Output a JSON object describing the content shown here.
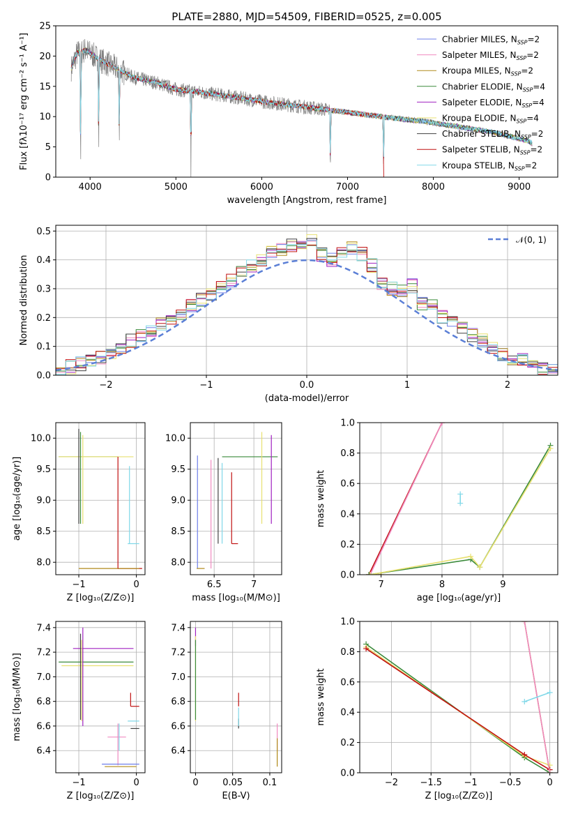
{
  "page": {
    "title": "PLATE=2880, MJD=54509, FIBERID=0525, z=0.005"
  },
  "models": [
    {
      "name": "Chabrier MILES, N",
      "sub": "SSP",
      "suffix": "=2",
      "color": "#6f7fe8"
    },
    {
      "name": "Salpeter MILES, N",
      "sub": "SSP",
      "suffix": "=2",
      "color": "#f08ac0"
    },
    {
      "name": "Kroupa MILES, N",
      "sub": "SSP",
      "suffix": "=2",
      "color": "#b08a1a"
    },
    {
      "name": "Chabrier ELODIE, N",
      "sub": "SSP",
      "suffix": "=4",
      "color": "#3a8a3a"
    },
    {
      "name": "Salpeter ELODIE, N",
      "sub": "SSP",
      "suffix": "=4",
      "color": "#a020c0"
    },
    {
      "name": "Kroupa ELODIE, N",
      "sub": "SSP",
      "suffix": "=4",
      "color": "#e8e070"
    },
    {
      "name": "Chabrier STELIB, N",
      "sub": "SSP",
      "suffix": "=2",
      "color": "#404040"
    },
    {
      "name": "Salpeter STELIB, N",
      "sub": "SSP",
      "suffix": "=2",
      "color": "#c01010"
    },
    {
      "name": "Kroupa STELIB, N",
      "sub": "SSP",
      "suffix": "=2",
      "color": "#80d8e8"
    }
  ],
  "chart_data": [
    {
      "id": "spectrum",
      "type": "line",
      "xlabel": "wavelength [Angstrom, rest frame]",
      "ylabel": "Flux [fλ10⁻¹⁷ erg cm⁻² s⁻¹ A⁻¹]",
      "xlim": [
        3600,
        9450
      ],
      "ylim": [
        0,
        25
      ],
      "xticks": [
        4000,
        5000,
        6000,
        7000,
        8000,
        9000
      ],
      "yticks": [
        0,
        5,
        10,
        15,
        20,
        25
      ],
      "observed_color": "#808080",
      "continuum_x": [
        3780,
        3850,
        3950,
        4100,
        4300,
        4500,
        4800,
        5000,
        5300,
        5600,
        6000,
        6500,
        7000,
        7500,
        7900,
        8300,
        8700,
        9100,
        9150
      ],
      "continuum_y": [
        18,
        20.5,
        21,
        19.5,
        18,
        16.5,
        15.5,
        14.5,
        14,
        13.4,
        12.5,
        11.6,
        10.7,
        9.8,
        9.2,
        8.3,
        7.4,
        6,
        5.6
      ],
      "absorption": [
        [
          3890,
          0.5
        ],
        [
          4100,
          3.5
        ],
        [
          4340,
          4.5
        ],
        [
          5175,
          0.3
        ],
        [
          6800,
          0.3
        ],
        [
          7420,
          0.3
        ]
      ]
    },
    {
      "id": "residuals",
      "type": "area",
      "xlabel": "(data-model)/error",
      "ylabel": "Normed distribution",
      "xlim": [
        -2.5,
        2.5
      ],
      "ylim": [
        0,
        0.52
      ],
      "xticks": [
        -2,
        -1,
        0,
        1,
        2
      ],
      "yticks": [
        0.0,
        0.1,
        0.2,
        0.3,
        0.4,
        0.5
      ],
      "reference_label": "𝒩(0, 1)",
      "reference_color": "#5b7fd6",
      "bin_edges_start": -2.5,
      "bin_width": 0.1,
      "histogram": [
        0.02,
        0.03,
        0.04,
        0.05,
        0.06,
        0.07,
        0.1,
        0.12,
        0.14,
        0.15,
        0.18,
        0.2,
        0.21,
        0.24,
        0.26,
        0.28,
        0.31,
        0.33,
        0.36,
        0.38,
        0.4,
        0.43,
        0.44,
        0.45,
        0.46,
        0.47,
        0.42,
        0.4,
        0.43,
        0.44,
        0.42,
        0.38,
        0.32,
        0.3,
        0.29,
        0.31,
        0.25,
        0.25,
        0.2,
        0.19,
        0.17,
        0.14,
        0.12,
        0.1,
        0.07,
        0.05,
        0.05,
        0.03,
        0.02,
        0.02
      ]
    },
    {
      "id": "z_vs_age",
      "type": "scatter",
      "xlabel": "Z [log₁₀(Z/Z⊙)]",
      "ylabel": "age  [log₁₀(age/yr)]",
      "xlim": [
        -1.4,
        0.15
      ],
      "ylim": [
        7.8,
        10.25
      ],
      "xticks": [
        -1,
        0
      ],
      "yticks": [
        8.0,
        8.5,
        9.0,
        9.5,
        10.0
      ],
      "segments": [
        {
          "m": 3,
          "h": [
            -1.35,
            -0.32,
            9.7
          ]
        },
        {
          "m": 5,
          "h": [
            -1.35,
            -0.05,
            9.7
          ]
        },
        {
          "m": 3,
          "v": [
            -0.97,
            8.62,
            10.1
          ]
        },
        {
          "m": 5,
          "v": [
            -0.93,
            8.62,
            10.05
          ]
        },
        {
          "m": 6,
          "v": [
            -1.0,
            8.62,
            10.15
          ]
        },
        {
          "m": 7,
          "h": [
            -0.32,
            0.1,
            7.9
          ]
        },
        {
          "m": 2,
          "h": [
            -1.0,
            0.05,
            7.9
          ]
        },
        {
          "m": 7,
          "v": [
            -0.32,
            7.9,
            9.7
          ]
        },
        {
          "m": 8,
          "v": [
            -0.12,
            8.3,
            9.55
          ]
        },
        {
          "m": 8,
          "h": [
            -0.15,
            0.05,
            8.3
          ]
        }
      ]
    },
    {
      "id": "mass_vs_age",
      "type": "scatter",
      "xlabel": "mass [log₁₀(M/M⊙)]",
      "ylabel": "",
      "xlim": [
        6.2,
        7.35
      ],
      "ylim": [
        7.8,
        10.25
      ],
      "xticks": [
        6.5,
        7.0
      ],
      "yticks": [
        8.0,
        8.5,
        9.0,
        9.5,
        10.0
      ],
      "segments": [
        {
          "m": 0,
          "v": [
            6.29,
            7.9,
            9.72
          ]
        },
        {
          "m": 1,
          "v": [
            6.46,
            7.9,
            9.65
          ]
        },
        {
          "m": 6,
          "v": [
            6.55,
            8.3,
            9.68
          ]
        },
        {
          "m": 8,
          "v": [
            6.6,
            8.3,
            9.6
          ]
        },
        {
          "m": 7,
          "v": [
            6.72,
            8.3,
            9.45
          ]
        },
        {
          "m": 7,
          "h": [
            6.72,
            6.8,
            8.3
          ]
        },
        {
          "m": 3,
          "h": [
            6.6,
            7.3,
            9.7
          ]
        },
        {
          "m": 5,
          "v": [
            7.1,
            8.62,
            10.1
          ]
        },
        {
          "m": 4,
          "v": [
            7.22,
            8.62,
            10.05
          ]
        },
        {
          "m": 2,
          "h": [
            6.28,
            6.38,
            7.9
          ]
        }
      ]
    },
    {
      "id": "age_vs_weight",
      "type": "line",
      "xlabel": "age  [log₁₀(age/yr)]",
      "ylabel": "mass weight",
      "xlim": [
        6.65,
        9.9
      ],
      "ylim": [
        0,
        1.0
      ],
      "xticks": [
        7,
        8,
        9
      ],
      "yticks": [
        0.0,
        0.2,
        0.4,
        0.6,
        0.8,
        1.0
      ],
      "lines": [
        {
          "m": 2,
          "x": [
            6.8,
            7.0
          ],
          "y": [
            0.0,
            0.0
          ]
        },
        {
          "m": 7,
          "x": [
            6.8,
            8.0
          ],
          "y": [
            0.0,
            1.0
          ]
        },
        {
          "m": 1,
          "x": [
            6.82,
            8.0
          ],
          "y": [
            0.0,
            1.0
          ]
        },
        {
          "m": 3,
          "x": [
            6.8,
            8.47,
            8.62,
            9.78
          ],
          "y": [
            0.0,
            0.1,
            0.05,
            0.85
          ]
        },
        {
          "m": 5,
          "x": [
            6.82,
            8.47,
            8.62,
            9.78
          ],
          "y": [
            0.0,
            0.12,
            0.05,
            0.83
          ]
        },
        {
          "m": 8,
          "x": [
            8.3,
            8.3
          ],
          "y": [
            0.47,
            0.53
          ]
        }
      ]
    },
    {
      "id": "z_vs_mass",
      "type": "scatter",
      "xlabel": "Z [log₁₀(Z/Z⊙)]",
      "ylabel": "mass [log₁₀(M/M⊙)]",
      "xlim": [
        -1.4,
        0.15
      ],
      "ylim": [
        6.22,
        7.45
      ],
      "xticks": [
        -1,
        0
      ],
      "yticks": [
        6.4,
        6.6,
        6.8,
        7.0,
        7.2,
        7.4
      ],
      "segments": [
        {
          "m": 3,
          "h": [
            -1.35,
            -0.05,
            7.12
          ]
        },
        {
          "m": 5,
          "h": [
            -1.3,
            -0.05,
            7.09
          ]
        },
        {
          "m": 4,
          "h": [
            -1.1,
            -0.05,
            7.23
          ]
        },
        {
          "m": 4,
          "v": [
            -0.93,
            6.6,
            7.4
          ]
        },
        {
          "m": 6,
          "v": [
            -0.97,
            6.65,
            7.35
          ]
        },
        {
          "m": 5,
          "v": [
            -0.95,
            6.64,
            7.3
          ]
        },
        {
          "m": 8,
          "h": [
            -0.15,
            0.05,
            6.64
          ]
        },
        {
          "m": 7,
          "h": [
            -0.1,
            0.05,
            6.76
          ]
        },
        {
          "m": 7,
          "v": [
            -0.1,
            6.76,
            6.87
          ]
        },
        {
          "m": 6,
          "h": [
            -0.1,
            0.05,
            6.58
          ]
        },
        {
          "m": 1,
          "h": [
            -0.5,
            -0.18,
            6.51
          ]
        },
        {
          "m": 1,
          "v": [
            -0.32,
            6.28,
            6.62
          ]
        },
        {
          "m": 0,
          "h": [
            -0.6,
            0.05,
            6.29
          ]
        },
        {
          "m": 2,
          "h": [
            -0.55,
            0.0,
            6.27
          ]
        },
        {
          "m": 8,
          "v": [
            -0.3,
            6.4,
            6.62
          ]
        }
      ]
    },
    {
      "id": "ebv_vs_mass",
      "type": "scatter",
      "xlabel": "E(B-V)",
      "ylabel": "",
      "xlim": [
        -0.007,
        0.116
      ],
      "ylim": [
        6.22,
        7.45
      ],
      "xticks": [
        0.0,
        0.05,
        0.1
      ],
      "yticks": [
        6.4,
        6.6,
        6.8,
        7.0,
        7.2,
        7.4
      ],
      "segments": [
        {
          "m": 4,
          "v": [
            0.0,
            7.25,
            7.4
          ]
        },
        {
          "m": 5,
          "v": [
            0.0,
            6.64,
            7.33
          ]
        },
        {
          "m": 3,
          "v": [
            0.0,
            6.65,
            7.3
          ]
        },
        {
          "m": 7,
          "v": [
            0.058,
            6.76,
            6.87
          ]
        },
        {
          "m": 6,
          "v": [
            0.058,
            6.58,
            6.66
          ]
        },
        {
          "m": 8,
          "v": [
            0.058,
            6.6,
            6.75
          ]
        },
        {
          "m": 1,
          "v": [
            0.11,
            6.4,
            6.62
          ]
        },
        {
          "m": 2,
          "v": [
            0.11,
            6.27,
            6.5
          ]
        }
      ]
    },
    {
      "id": "z_vs_weight",
      "type": "line",
      "xlabel": "Z [log₁₀(Z/Z⊙)]",
      "ylabel": "mass weight",
      "xlim": [
        -2.4,
        0.1
      ],
      "ylim": [
        0,
        1.0
      ],
      "xticks": [
        -2.0,
        -1.5,
        -1.0,
        -0.5,
        0.0
      ],
      "yticks": [
        0.0,
        0.2,
        0.4,
        0.6,
        0.8,
        1.0
      ],
      "lines": [
        {
          "m": 3,
          "x": [
            -2.32,
            -0.32,
            0.0
          ],
          "y": [
            0.85,
            0.1,
            0.0
          ]
        },
        {
          "m": 5,
          "x": [
            -2.32,
            -0.32,
            0.0
          ],
          "y": [
            0.83,
            0.11,
            0.05
          ]
        },
        {
          "m": 7,
          "x": [
            -2.32,
            -0.32,
            0.0
          ],
          "y": [
            0.82,
            0.12,
            0.02
          ]
        },
        {
          "m": 2,
          "x": [
            -0.32,
            0.0
          ],
          "y": [
            1.0,
            0.0
          ]
        },
        {
          "m": 1,
          "x": [
            -0.32,
            0.0
          ],
          "y": [
            1.0,
            0.0
          ]
        },
        {
          "m": 8,
          "x": [
            -0.32,
            0.0
          ],
          "y": [
            0.47,
            0.53
          ]
        }
      ]
    }
  ]
}
